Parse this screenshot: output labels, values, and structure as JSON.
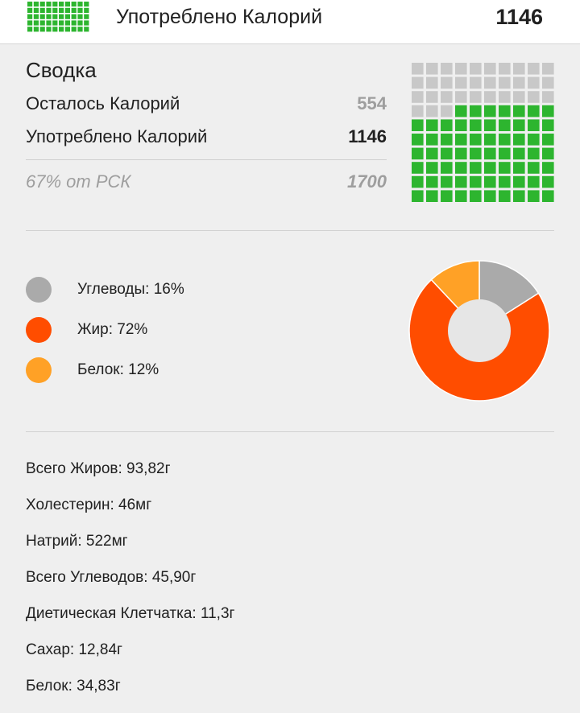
{
  "header": {
    "label": "Употреблено Калорий",
    "value": "1146"
  },
  "summary": {
    "title": "Сводка",
    "remaining_label": "Осталось Калорий",
    "remaining_value": "554",
    "consumed_label": "Употреблено Калорий",
    "consumed_value": "1146",
    "rdi_label": "67% от РСК",
    "rdi_value": "1700",
    "filled_fraction": 0.67
  },
  "macros": [
    {
      "label": "Углеводы: 16%",
      "percent": 16,
      "color": "#aaaaaa"
    },
    {
      "label": "Жир: 72%",
      "percent": 72,
      "color": "#ff4d00"
    },
    {
      "label": "Белок: 12%",
      "percent": 12,
      "color": "#ffa126"
    }
  ],
  "nutrients": [
    "Всего Жиров: 93,82г",
    "Холестерин: 46мг",
    "Натрий: 522мг",
    "Всего Углеводов: 45,90г",
    "Диетическая Клетчатка: 11,3г",
    "Сахар: 12,84г",
    "Белок: 34,83г"
  ],
  "colors": {
    "green": "#2db52f",
    "grey_cell": "#c8c8c8",
    "donut_hole": "#e6e6e6"
  }
}
